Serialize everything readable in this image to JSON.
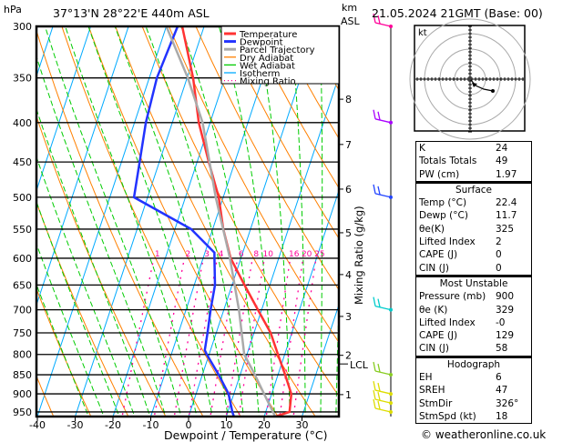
{
  "header": {
    "hpa_label": "hPa",
    "location": "37°13'N  28°22'E  440m  ASL",
    "km_label": "km",
    "asl_label": "ASL",
    "datetime": "21.05.2024  21GMT  (Base: 00)",
    "copyright": "© weatheronline.co.uk"
  },
  "chart_data": {
    "type": "line",
    "subtype": "skew-T log-P",
    "xlabel": "Dewpoint / Temperature (°C)",
    "ylabel": "hPa",
    "right_label": "Mixing Ratio (g/kg)",
    "xlim": [
      -40,
      40
    ],
    "ylim": [
      963,
      300
    ],
    "x_ticks": [
      "-40",
      "-30",
      "-20",
      "-10",
      "0",
      "10",
      "20",
      "30"
    ],
    "x_tick_values": [
      -40,
      -30,
      -20,
      -10,
      0,
      10,
      20,
      30
    ],
    "p_ticks": [
      300,
      350,
      400,
      450,
      500,
      550,
      600,
      650,
      700,
      750,
      800,
      850,
      900,
      950
    ],
    "legend": [
      {
        "label": "Temperature",
        "color": "#ff3333"
      },
      {
        "label": "Dewpoint",
        "color": "#2233ff"
      },
      {
        "label": "Parcel Trajectory",
        "color": "#aaaaaa"
      },
      {
        "label": "Dry Adiabat",
        "color": "#ff8000"
      },
      {
        "label": "Wet Adiabat",
        "color": "#00cc00"
      },
      {
        "label": "Isotherm",
        "color": "#00aaff"
      },
      {
        "label": "Mixing Ratio",
        "color": "#ff0099"
      }
    ],
    "legend_position": "top-right",
    "series": [
      {
        "name": "Temperature",
        "p": [
          963,
          950,
          900,
          850,
          800,
          750,
          700,
          650,
          600,
          550,
          500,
          450,
          400,
          350,
          300
        ],
        "t": [
          23.0,
          26.3,
          25.2,
          21.9,
          18.2,
          14.4,
          9.0,
          3.3,
          -2.7,
          -7.2,
          -11.2,
          -16.9,
          -23.0,
          -28.4,
          -35.8
        ]
      },
      {
        "name": "Dewpoint",
        "p": [
          963,
          950,
          900,
          850,
          800,
          790,
          750,
          700,
          650,
          600,
          590,
          550,
          500,
          450,
          400,
          350,
          300
        ],
        "t": [
          12.0,
          11.2,
          8.6,
          4.3,
          -0.6,
          -1.5,
          -2.3,
          -3.5,
          -4.5,
          -7.0,
          -7.5,
          -15.7,
          -33.6,
          -35.2,
          -37.0,
          -38.0,
          -37.0
        ]
      },
      {
        "name": "Parcel Trajectory",
        "p": [
          963,
          900,
          850,
          800,
          700,
          600,
          500,
          400,
          350,
          300
        ],
        "t": [
          22.9,
          18.0,
          13.9,
          9.3,
          4.0,
          -2.9,
          -12.0,
          -22.0,
          -29.8,
          -40.0
        ]
      }
    ],
    "mixing_ratio_labels": [
      "1",
      "2",
      "3",
      "4",
      "6",
      "8",
      "10",
      "16",
      "20",
      "25"
    ],
    "mixing_ratio_values": [
      1,
      2,
      3,
      4,
      6,
      8,
      10,
      16,
      20,
      25
    ],
    "km_ticks": [
      {
        "label": "1",
        "p": 902
      },
      {
        "label": "2",
        "p": 802
      },
      {
        "label": "3",
        "p": 714
      },
      {
        "label": "4",
        "p": 630
      },
      {
        "label": "5",
        "p": 556
      },
      {
        "label": "6",
        "p": 488
      },
      {
        "label": "7",
        "p": 427
      },
      {
        "label": "8",
        "p": 373
      }
    ],
    "lcl": {
      "label": "LCL",
      "p": 823
    },
    "wind_barbs": [
      {
        "p": 300,
        "color": "#ff0099"
      },
      {
        "p": 400,
        "color": "#aa00ff"
      },
      {
        "p": 500,
        "color": "#2244ff"
      },
      {
        "p": 700,
        "color": "#00cccc"
      },
      {
        "p": 850,
        "color": "#88cc22"
      },
      {
        "p": 900,
        "color": "#dddd00"
      },
      {
        "p": 925,
        "color": "#dddd00"
      },
      {
        "p": 950,
        "color": "#dddd00"
      }
    ]
  },
  "hodograph": {
    "unit": "kt"
  },
  "indices": [
    {
      "label": "K",
      "value": "24"
    },
    {
      "label": "Totals Totals",
      "value": "49"
    },
    {
      "label": "PW (cm)",
      "value": "1.97"
    }
  ],
  "surface": {
    "title": "Surface",
    "rows": [
      {
        "label": "Temp (°C)",
        "value": "22.4"
      },
      {
        "label": "Dewp (°C)",
        "value": "11.7"
      },
      {
        "label": "θe(K)",
        "value": "325"
      },
      {
        "label": "Lifted Index",
        "value": "2"
      },
      {
        "label": "CAPE (J)",
        "value": "0"
      },
      {
        "label": "CIN (J)",
        "value": "0"
      }
    ]
  },
  "most_unstable": {
    "title": "Most Unstable",
    "rows": [
      {
        "label": "Pressure (mb)",
        "value": "900"
      },
      {
        "label": "θe (K)",
        "value": "329"
      },
      {
        "label": "Lifted Index",
        "value": "-0"
      },
      {
        "label": "CAPE (J)",
        "value": "129"
      },
      {
        "label": "CIN (J)",
        "value": "58"
      }
    ]
  },
  "hodograph_table": {
    "title": "Hodograph",
    "rows": [
      {
        "label": "EH",
        "value": "6"
      },
      {
        "label": "SREH",
        "value": "47"
      },
      {
        "label": "StmDir",
        "value": "326°"
      },
      {
        "label": "StmSpd (kt)",
        "value": "18"
      }
    ]
  }
}
